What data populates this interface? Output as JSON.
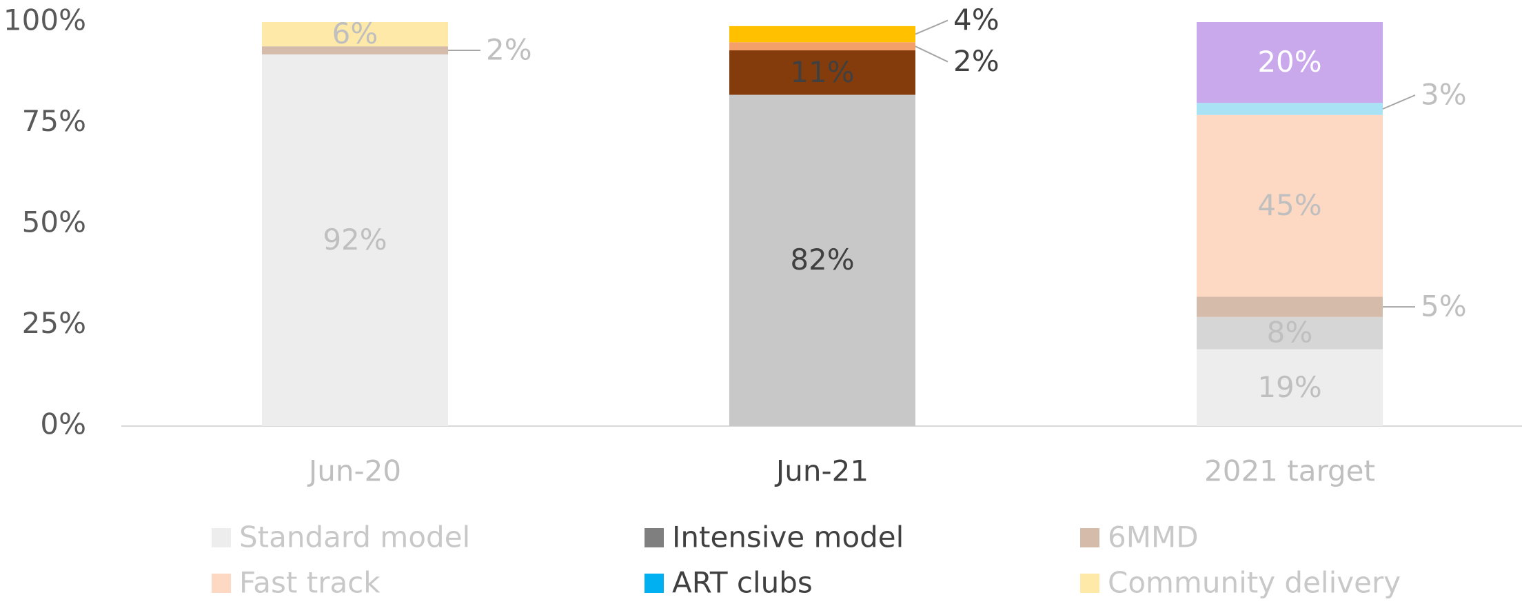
{
  "chart_data": {
    "type": "stacked_bar",
    "categories": [
      "Jun-20",
      "Jun-21",
      "2021 target"
    ],
    "category_label_colors": [
      "#bfbfbf",
      "#404040",
      "#bfbfbf"
    ],
    "ylim": [
      0,
      100
    ],
    "yticks": [
      {
        "value": 0,
        "label": "0%"
      },
      {
        "value": 25,
        "label": "25%"
      },
      {
        "value": 50,
        "label": "50%"
      },
      {
        "value": 75,
        "label": "75%"
      },
      {
        "value": 100,
        "label": "100%"
      }
    ],
    "grid": false,
    "legend": "bottom",
    "series": [
      {
        "name": "Standard model",
        "color": "#ededed",
        "legend_label_color": "#c8c8c8",
        "values": [
          92,
          82,
          19
        ],
        "value_labels": [
          "92%",
          "82%",
          "19%"
        ],
        "colors": [
          "#ededed",
          "#c8c8c8",
          "#ededed"
        ],
        "label_colors": [
          "#bfbfbf",
          "#404040",
          "#bfbfbf"
        ]
      },
      {
        "name": "Intensive model",
        "color": "#7f7f7f",
        "legend_label_color": "#404040",
        "values": [
          null,
          11,
          8
        ],
        "value_labels": [
          null,
          "11%",
          "8%"
        ],
        "colors": [
          null,
          "#843c0c",
          "#d6d6d6"
        ],
        "label_colors": [
          null,
          "#404040",
          "#bfbfbf"
        ]
      },
      {
        "name": "6MMD",
        "color": "#d5bcaa",
        "legend_label_color": "#c8c8c8",
        "values": [
          2,
          2,
          5
        ],
        "value_labels": [
          "2%",
          "2%",
          "5%"
        ],
        "colors": [
          "#d5bcaa",
          "#f4a06a",
          "#d5bcaa"
        ],
        "label_colors": [
          "#bfbfbf",
          "#404040",
          "#bfbfbf"
        ]
      },
      {
        "name": "Fast track",
        "color": "#fdd9c4",
        "legend_label_color": "#c8c8c8",
        "values": [
          null,
          null,
          45
        ],
        "value_labels": [
          null,
          null,
          "45%"
        ],
        "colors": [
          null,
          null,
          "#fdd9c4"
        ],
        "label_colors": [
          null,
          null,
          "#bfbfbf"
        ]
      },
      {
        "name": "ART clubs",
        "color": "#00b0f0",
        "legend_label_color": "#404040",
        "values": [
          null,
          null,
          3
        ],
        "value_labels": [
          null,
          null,
          "3%"
        ],
        "colors": [
          null,
          null,
          "#a9e2f5"
        ],
        "label_colors": [
          null,
          null,
          "#bfbfbf"
        ]
      },
      {
        "name": "Community delivery",
        "color": "#ffe9a8",
        "legend_label_color": "#c8c8c8",
        "values": [
          6,
          4,
          20
        ],
        "value_labels": [
          "6%",
          "4%",
          "20%"
        ],
        "colors": [
          "#ffe9a8",
          "#ffc000",
          "#c9a8ec"
        ],
        "label_colors": [
          "#bfbfbf",
          "#404040",
          "#ffffff"
        ]
      }
    ]
  }
}
